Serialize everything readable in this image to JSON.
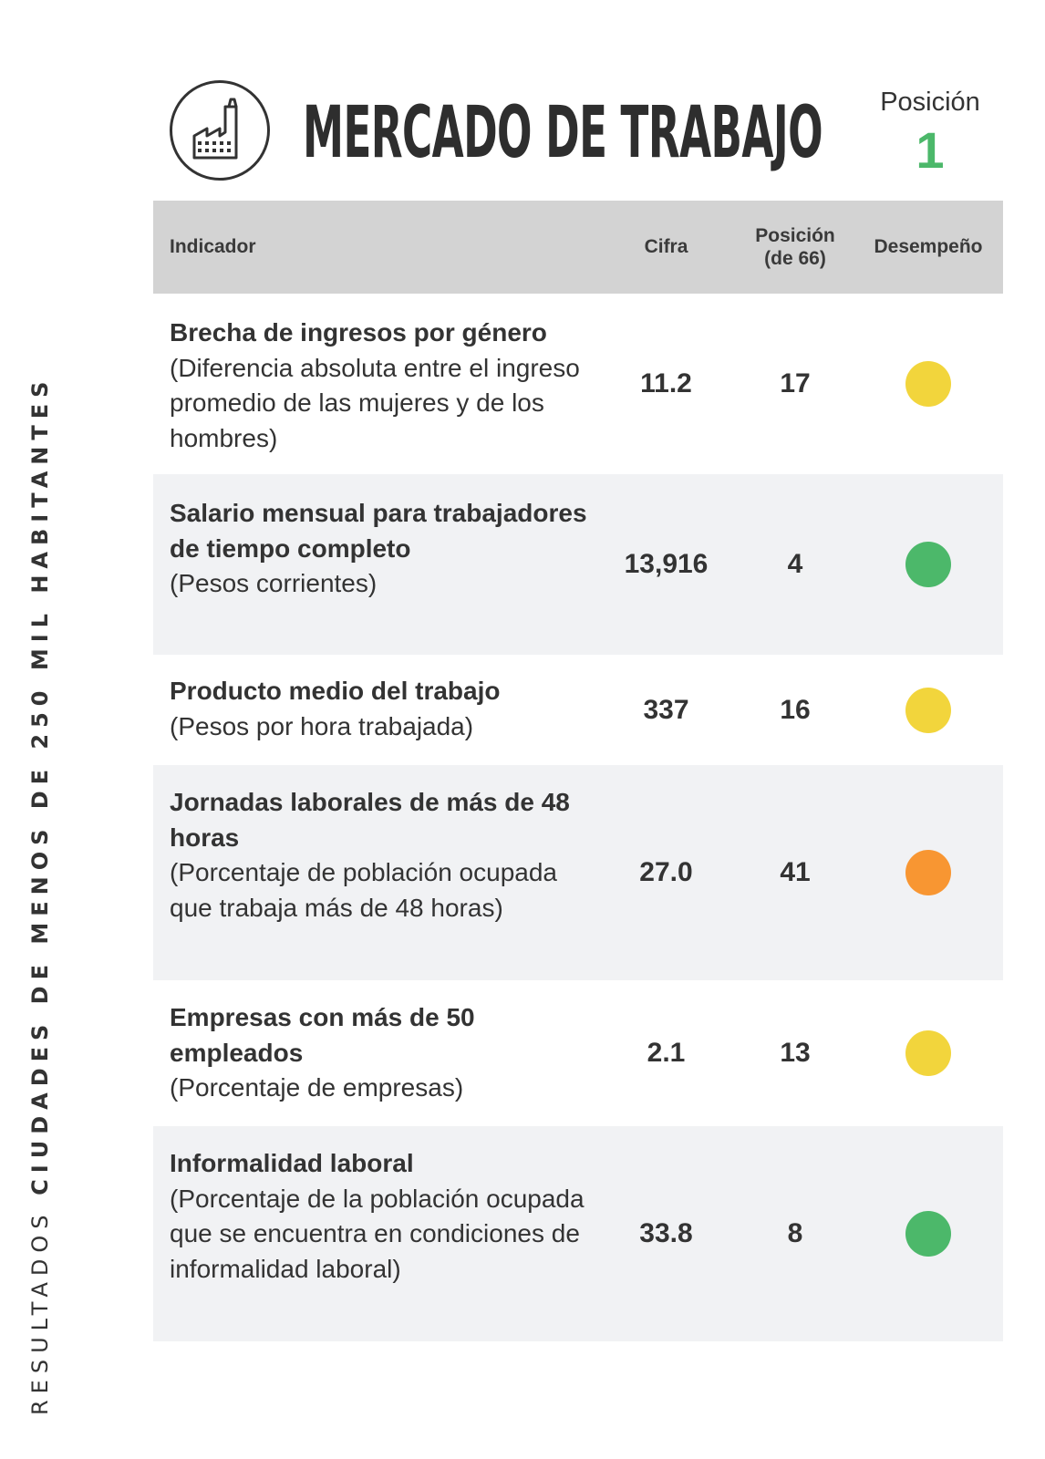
{
  "side_label": {
    "prefix": "RESULTADOS",
    "highlight": "CIUDADES DE MENOS DE 250 MIL HABITANTES"
  },
  "header": {
    "icon": "factory-icon",
    "title": "MERCADO DE TRABAJO",
    "rank_label": "Posición",
    "rank_value": "1",
    "rank_color": "#4cb86a"
  },
  "table": {
    "columns": {
      "indicator": "Indicador",
      "figure": "Cifra",
      "position": "Posición\n(de 66)",
      "performance": "Desempeño"
    },
    "rows": [
      {
        "title": "Brecha de ingresos por género",
        "note": "(Diferencia absoluta entre el ingreso promedio de las mujeres y de los hombres)",
        "figure": "11.2",
        "position": "17",
        "performance": "yellow",
        "color": "#f2d53c"
      },
      {
        "title": "Salario mensual para trabajadores de tiempo completo",
        "note": "(Pesos corrientes)",
        "figure": "13,916",
        "position": "4",
        "performance": "green",
        "color": "#4cb86a"
      },
      {
        "title": "Producto medio del trabajo",
        "note": "(Pesos por hora trabajada)",
        "figure": "337",
        "position": "16",
        "performance": "yellow",
        "color": "#f2d53c"
      },
      {
        "title": "Jornadas laborales de más de 48 horas",
        "note": "(Porcentaje de población ocupada que trabaja más de 48 horas)",
        "figure": "27.0",
        "position": "41",
        "performance": "orange",
        "color": "#f89632"
      },
      {
        "title": "Empresas con más de 50 empleados",
        "note": "(Porcentaje de empresas)",
        "figure": "2.1",
        "position": "13",
        "performance": "yellow",
        "color": "#f2d53c"
      },
      {
        "title": "Informalidad laboral",
        "note": "(Porcentaje de la población ocupada que se encuentra en condiciones de informalidad laboral)",
        "figure": "33.8",
        "position": "8",
        "performance": "green",
        "color": "#4cb86a"
      }
    ]
  }
}
